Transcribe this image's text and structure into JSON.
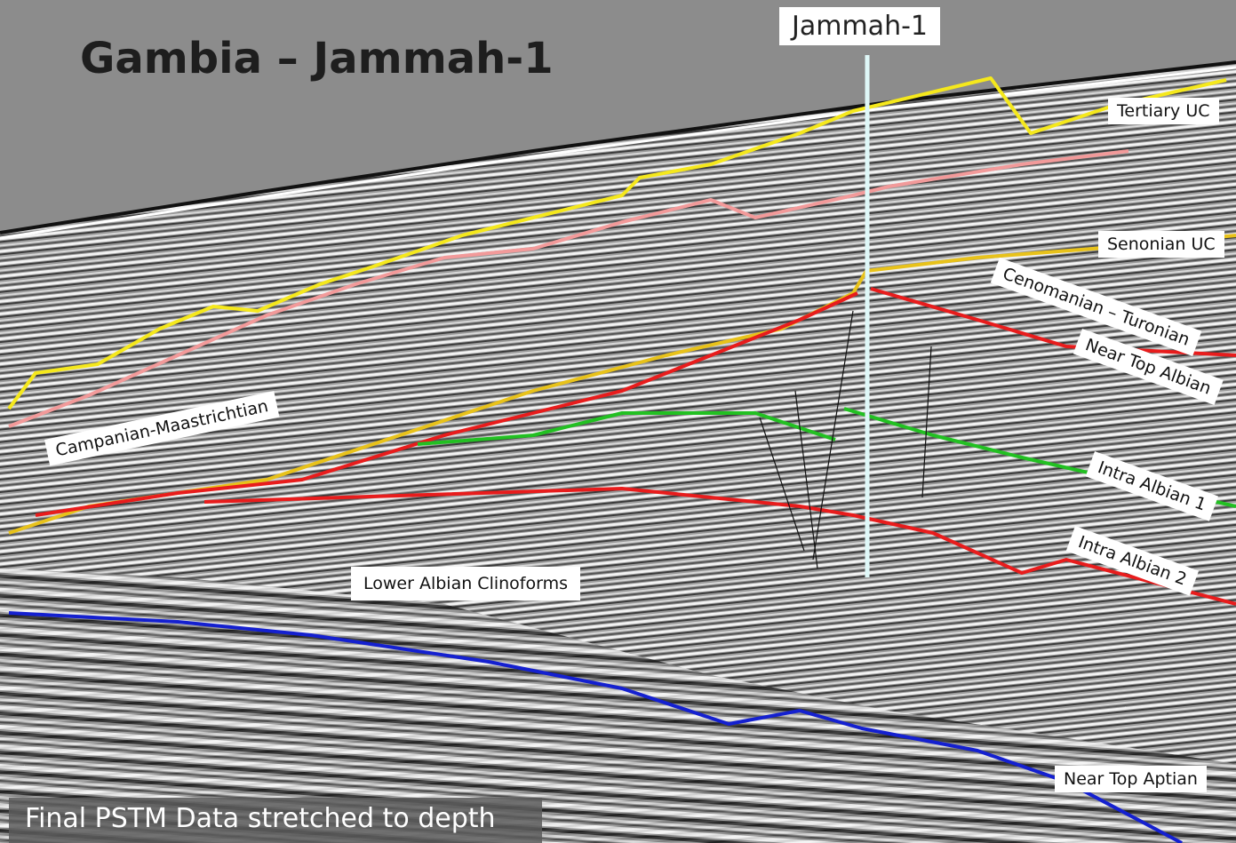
{
  "header": {
    "title": "Gambia – Jammah-1",
    "well": "Jammah-1"
  },
  "horizons": [
    "Tertiary UC",
    "Senonian UC",
    "Cenomanian – Turonian",
    "Near Top Albian",
    "Intra Albian 1",
    "Intra Albian 2",
    "Near Top Aptian"
  ],
  "units": [
    "Campanian-Maastrichtian",
    "Lower Albian Clinoforms"
  ],
  "caption": "Final PSTM Data stretched to depth"
}
